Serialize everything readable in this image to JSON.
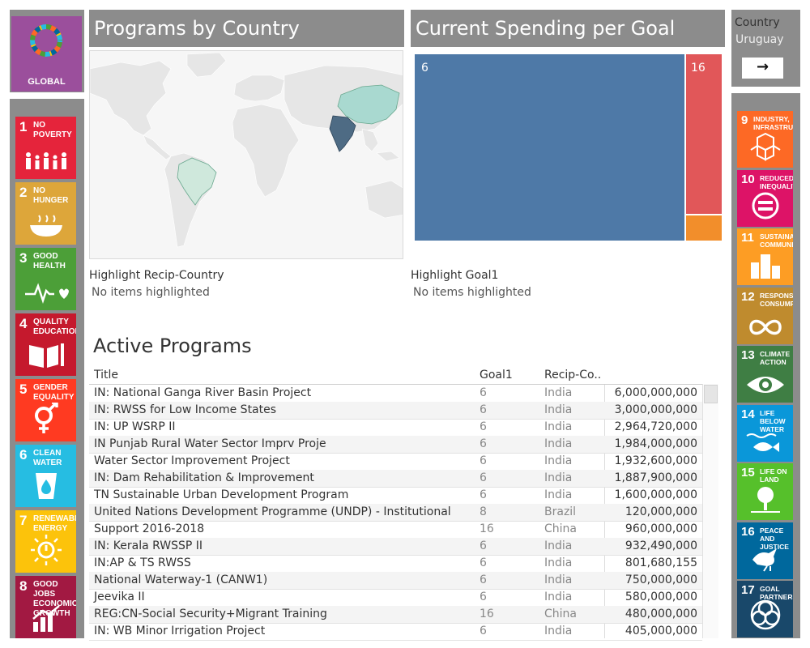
{
  "logo": {
    "label": "GLOBAL"
  },
  "headers": {
    "programs": "Programs by Country",
    "spending": "Current Spending per Goal"
  },
  "country_filter": {
    "label": "Country",
    "value": "Uruguay",
    "arrow": "→"
  },
  "left_goals": [
    {
      "num": "1",
      "title": "No poverty",
      "color": "#e5243b",
      "icon": "family-icon"
    },
    {
      "num": "2",
      "title": "No hunger",
      "color": "#dda63a",
      "icon": "bowl-icon"
    },
    {
      "num": "3",
      "title": "Good health",
      "color": "#4c9f38",
      "icon": "heartbeat-icon"
    },
    {
      "num": "4",
      "title": "Quality education",
      "color": "#c5192d",
      "icon": "book-icon"
    },
    {
      "num": "5",
      "title": "Gender equality",
      "color": "#ff3a21",
      "icon": "gender-icon"
    },
    {
      "num": "6",
      "title": "Clean water",
      "color": "#26bde2",
      "icon": "water-drop-icon"
    },
    {
      "num": "7",
      "title": "Renewable energy",
      "color": "#fcc30b",
      "icon": "sun-power-icon"
    },
    {
      "num": "8",
      "title": "Good jobs economic growth",
      "color": "#a21942",
      "icon": "growth-chart-icon"
    }
  ],
  "right_goals": [
    {
      "num": "9",
      "title": "Industry, infrastructure",
      "color": "#fd6925",
      "icon": "cubes-icon"
    },
    {
      "num": "10",
      "title": "Reduced inequalities",
      "color": "#dd1367",
      "icon": "equal-icon"
    },
    {
      "num": "11",
      "title": "Sustainable communities",
      "color": "#fd9d24",
      "icon": "buildings-icon"
    },
    {
      "num": "12",
      "title": "Responsible consumption",
      "color": "#bf8b2e",
      "icon": "infinity-icon"
    },
    {
      "num": "13",
      "title": "Climate action",
      "color": "#3f7e44",
      "icon": "eye-globe-icon"
    },
    {
      "num": "14",
      "title": "Life below water",
      "color": "#0a97d9",
      "icon": "fish-icon"
    },
    {
      "num": "15",
      "title": "Life on land",
      "color": "#56c02b",
      "icon": "tree-icon"
    },
    {
      "num": "16",
      "title": "Peace and justice",
      "color": "#00689d",
      "icon": "dove-icon"
    },
    {
      "num": "17",
      "title": "Goal partners",
      "color": "#19486a",
      "icon": "rings-icon"
    }
  ],
  "map": {
    "highlight_label": "Highlight Recip-Country",
    "highlight_value": "No items highlighted"
  },
  "treemap": {
    "highlight_label": "Highlight Goal1",
    "highlight_value": "No items highlighted",
    "labels": [
      "6",
      "16"
    ]
  },
  "chart_data": {
    "type": "treemap",
    "items": [
      {
        "goal": "6",
        "color": "#4e79a7"
      },
      {
        "goal": "16",
        "color": "#e15759"
      },
      {
        "goal": "",
        "color": "#f28e2b"
      }
    ]
  },
  "programs": {
    "title": "Active Programs",
    "columns": [
      "Title",
      "Goal1",
      "Recip-Co..",
      ""
    ],
    "rows": [
      {
        "title": "IN: National Ganga River Basin Project",
        "goal": "6",
        "country": "India",
        "amount": "6,000,000,000"
      },
      {
        "title": "IN: RWSS for Low Income States",
        "goal": "6",
        "country": "India",
        "amount": "3,000,000,000"
      },
      {
        "title": "IN: UP WSRP II",
        "goal": "6",
        "country": "India",
        "amount": "2,964,720,000"
      },
      {
        "title": "IN Punjab Rural Water Sector Imprv Proje",
        "goal": "6",
        "country": "India",
        "amount": "1,984,000,000"
      },
      {
        "title": "Water Sector Improvement Project",
        "goal": "6",
        "country": "India",
        "amount": "1,932,600,000"
      },
      {
        "title": "IN: Dam Rehabilitation & Improvement",
        "goal": "6",
        "country": "India",
        "amount": "1,887,900,000"
      },
      {
        "title": "TN Sustainable Urban Development Program",
        "goal": "6",
        "country": "India",
        "amount": "1,600,000,000"
      },
      {
        "title": "United Nations Development Programme (UNDP) - Institutional",
        "goal": "8",
        "country": "Brazil",
        "amount": "120,000,000"
      },
      {
        "title": "Support 2016-2018",
        "goal": "16",
        "country": "China",
        "amount": "960,000,000"
      },
      {
        "title": "IN: Kerala RWSSP II",
        "goal": "6",
        "country": "India",
        "amount": "932,490,000"
      },
      {
        "title": "IN:AP & TS RWSS",
        "goal": "6",
        "country": "India",
        "amount": "801,680,155"
      },
      {
        "title": "National Waterway-1 (CANW1)",
        "goal": "6",
        "country": "India",
        "amount": "750,000,000"
      },
      {
        "title": "Jeevika II",
        "goal": "6",
        "country": "India",
        "amount": "580,000,000"
      },
      {
        "title": "REG:CN-Social Security+Migrant Training",
        "goal": "16",
        "country": "China",
        "amount": "480,000,000"
      },
      {
        "title": "IN: WB Minor Irrigation Project",
        "goal": "6",
        "country": "India",
        "amount": "405,000,000"
      }
    ]
  }
}
